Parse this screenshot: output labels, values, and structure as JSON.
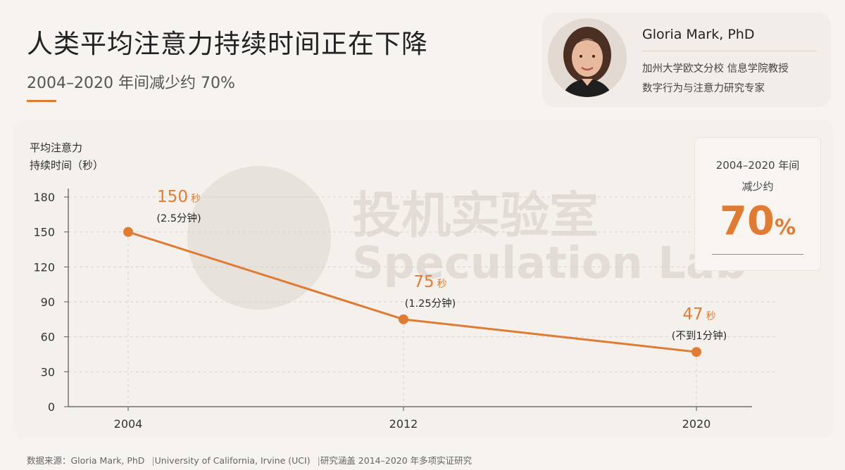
{
  "header": {
    "title": "人类平均注意力持续时间正在下降",
    "subtitle": "2004–2020 年间减少约 70%"
  },
  "author": {
    "name": "Gloria Mark, PhD",
    "affiliation": "加州大学欧文分校 信息学院教授",
    "field": "数字行为与注意力研究专家"
  },
  "stat": {
    "label_line1": "2004–2020 年间",
    "label_line2": "减少约",
    "value": "70",
    "unit": "%"
  },
  "watermark": {
    "cn": "投机实验室",
    "en": "Speculation Lab"
  },
  "source": {
    "prefix": "数据来源：Gloria Mark, PhD",
    "sep1": "|",
    "institution": "University of California, Irvine (UCI)",
    "sep2": "|",
    "note": "研究涵盖 2014–2020 年多项实证研究"
  },
  "colors": {
    "accent": "#e07b34",
    "grid": "#d9d2cb",
    "axis": "#555555"
  },
  "chart_data": {
    "type": "line",
    "ylabel_line1": "平均注意力",
    "ylabel_line2": "持续时间（秒）",
    "x": [
      "2004",
      "2012",
      "2020"
    ],
    "series": [
      {
        "values": [
          150,
          75,
          47
        ]
      }
    ],
    "ylim": [
      0,
      180
    ],
    "yticks": [
      0,
      30,
      60,
      90,
      120,
      150,
      180
    ],
    "grid": true,
    "annotations": [
      {
        "value": "150",
        "unit": "秒",
        "note": "(2.5分钟)"
      },
      {
        "value": "75",
        "unit": "秒",
        "note": "(1.25分钟)"
      },
      {
        "value": "47",
        "unit": "秒",
        "note": "(不到1分钟)"
      }
    ]
  }
}
